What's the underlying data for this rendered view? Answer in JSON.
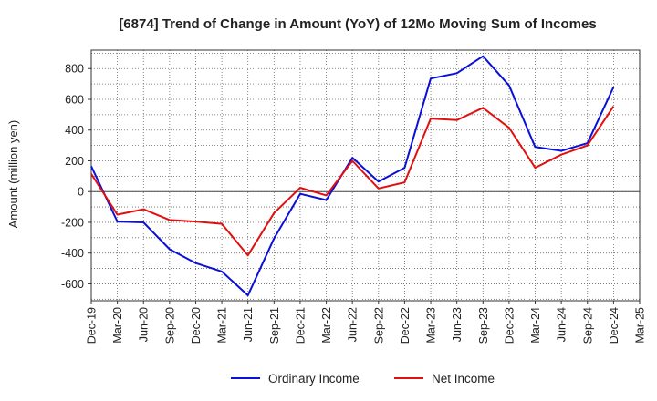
{
  "chart_data": {
    "type": "line",
    "title": "[6874]  Trend of Change in Amount (YoY) of 12Mo Moving Sum of Incomes",
    "ylabel": "Amount (million yen)",
    "xlabel": "",
    "ylim": [
      -710,
      920
    ],
    "yticks": [
      -600,
      -400,
      -200,
      0,
      200,
      400,
      600,
      800
    ],
    "grid": true,
    "legend_position": "bottom",
    "tick_labels": [
      "Dec-19",
      "Mar-20",
      "Jun-20",
      "Sep-20",
      "Dec-20",
      "Mar-21",
      "Jun-21",
      "Sep-21",
      "Dec-21",
      "Mar-22",
      "Jun-22",
      "Sep-22",
      "Dec-22",
      "Mar-23",
      "Jun-23",
      "Sep-23",
      "Dec-23",
      "Mar-24",
      "Jun-24",
      "Sep-24",
      "Dec-24",
      "Mar-25"
    ],
    "categories": [
      "Dec-19",
      "Mar-20",
      "Jun-20",
      "Sep-20",
      "Dec-20",
      "Mar-21",
      "Jun-21",
      "Sep-21",
      "Dec-21",
      "Mar-22",
      "Jun-22",
      "Sep-22",
      "Dec-22",
      "Mar-23",
      "Jun-23",
      "Sep-23",
      "Dec-23",
      "Mar-24",
      "Jun-24",
      "Sep-24",
      "Dec-24"
    ],
    "series": [
      {
        "name": "Ordinary Income",
        "color": "#0a10d8",
        "values": [
          165,
          -195,
          -200,
          -375,
          -465,
          -520,
          -675,
          -305,
          -15,
          -55,
          220,
          65,
          155,
          735,
          770,
          880,
          690,
          290,
          265,
          315,
          680
        ]
      },
      {
        "name": "Net Income",
        "color": "#e01010",
        "values": [
          115,
          -150,
          -115,
          -185,
          -195,
          -210,
          -415,
          -140,
          25,
          -25,
          200,
          20,
          60,
          475,
          465,
          545,
          415,
          155,
          240,
          300,
          555
        ]
      }
    ]
  }
}
